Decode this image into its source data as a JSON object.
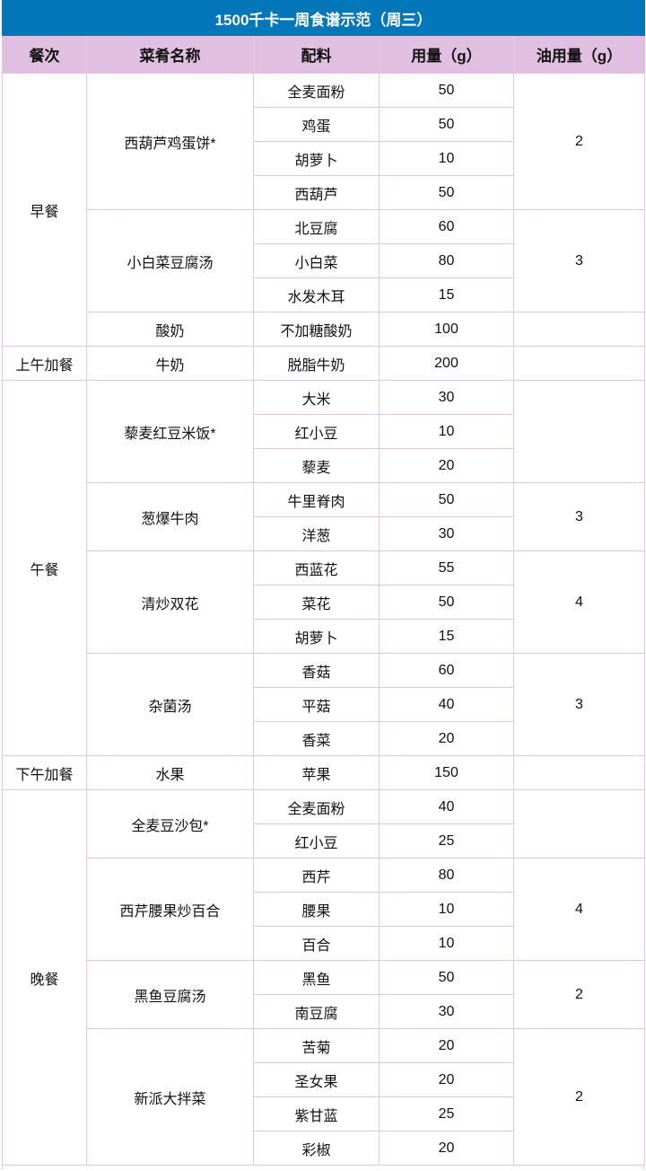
{
  "title": "1500千卡一周食谱示范（周三）",
  "headers": [
    "餐次",
    "菜肴名称",
    "配料",
    "用量（g）",
    "油用量（g）"
  ],
  "meals": [
    {
      "name": "早餐",
      "dishes": [
        {
          "name": "西葫芦鸡蛋饼*",
          "oil": "2",
          "ingredients": [
            {
              "name": "全麦面粉",
              "amount": "50"
            },
            {
              "name": "鸡蛋",
              "amount": "50"
            },
            {
              "name": "胡萝卜",
              "amount": "10"
            },
            {
              "name": "西葫芦",
              "amount": "50"
            }
          ]
        },
        {
          "name": "小白菜豆腐汤",
          "oil": "3",
          "ingredients": [
            {
              "name": "北豆腐",
              "amount": "60"
            },
            {
              "name": "小白菜",
              "amount": "80"
            },
            {
              "name": "水发木耳",
              "amount": "15"
            }
          ]
        },
        {
          "name": "酸奶",
          "oil": "",
          "ingredients": [
            {
              "name": "不加糖酸奶",
              "amount": "100"
            }
          ]
        }
      ]
    },
    {
      "name": "上午加餐",
      "dishes": [
        {
          "name": "牛奶",
          "oil": "",
          "ingredients": [
            {
              "name": "脱脂牛奶",
              "amount": "200"
            }
          ]
        }
      ]
    },
    {
      "name": "午餐",
      "dishes": [
        {
          "name": "藜麦红豆米饭*",
          "oil": "",
          "ingredients": [
            {
              "name": "大米",
              "amount": "30"
            },
            {
              "name": "红小豆",
              "amount": "10"
            },
            {
              "name": "藜麦",
              "amount": "20"
            }
          ]
        },
        {
          "name": "葱爆牛肉",
          "oil": "3",
          "ingredients": [
            {
              "name": "牛里脊肉",
              "amount": "50"
            },
            {
              "name": "洋葱",
              "amount": "30"
            }
          ]
        },
        {
          "name": "清炒双花",
          "oil": "4",
          "ingredients": [
            {
              "name": "西蓝花",
              "amount": "55"
            },
            {
              "name": "菜花",
              "amount": "50"
            },
            {
              "name": "胡萝卜",
              "amount": "15"
            }
          ]
        },
        {
          "name": "杂菌汤",
          "oil": "3",
          "ingredients": [
            {
              "name": "香菇",
              "amount": "60"
            },
            {
              "name": "平菇",
              "amount": "40"
            },
            {
              "name": "香菜",
              "amount": "20"
            }
          ]
        }
      ]
    },
    {
      "name": "下午加餐",
      "dishes": [
        {
          "name": "水果",
          "oil": "",
          "ingredients": [
            {
              "name": "苹果",
              "amount": "150"
            }
          ]
        }
      ]
    },
    {
      "name": "晚餐",
      "dishes": [
        {
          "name": "全麦豆沙包*",
          "oil": "",
          "ingredients": [
            {
              "name": "全麦面粉",
              "amount": "40"
            },
            {
              "name": "红小豆",
              "amount": "25"
            }
          ]
        },
        {
          "name": "西芹腰果炒百合",
          "oil": "4",
          "ingredients": [
            {
              "name": "西芹",
              "amount": "80"
            },
            {
              "name": "腰果",
              "amount": "10"
            },
            {
              "name": "百合",
              "amount": "10"
            }
          ]
        },
        {
          "name": "黑鱼豆腐汤",
          "oil": "2",
          "ingredients": [
            {
              "name": "黑鱼",
              "amount": "50"
            },
            {
              "name": "南豆腐",
              "amount": "30"
            }
          ]
        },
        {
          "name": "新派大拌菜",
          "oil": "2",
          "ingredients": [
            {
              "name": "苦菊",
              "amount": "20"
            },
            {
              "name": "圣女果",
              "amount": "20"
            },
            {
              "name": "紫甘蓝",
              "amount": "25"
            },
            {
              "name": "彩椒",
              "amount": "20"
            }
          ]
        }
      ]
    }
  ],
  "colors": {
    "title_bg": "#0377b9",
    "header_bg": "#e1bfe0",
    "border": "#e2c6e2"
  }
}
